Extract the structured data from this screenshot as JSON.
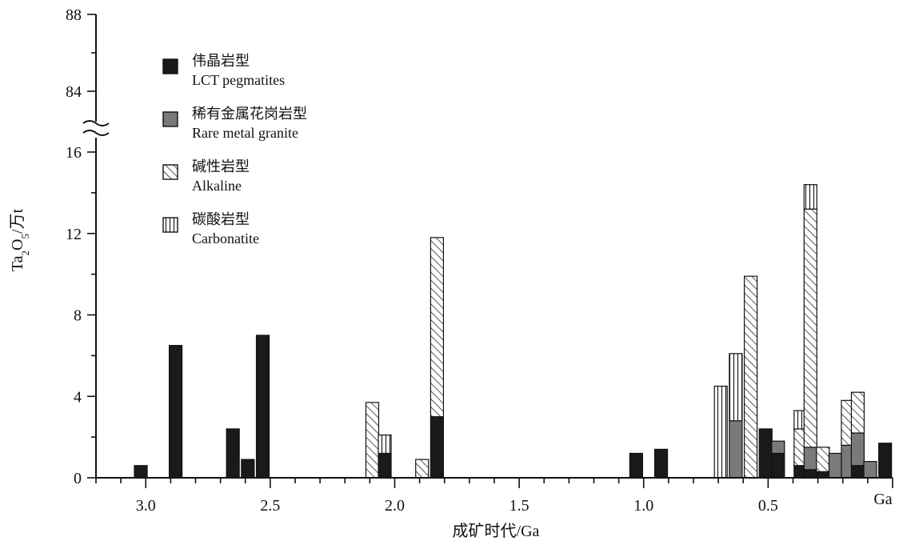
{
  "chart_data": {
    "type": "bar",
    "stacked": true,
    "xlabel": "成矿时代/Ga",
    "ylabel": "Ta2O5/万t",
    "x_unit_label": "Ga",
    "x_reversed": true,
    "xlim": [
      3.2,
      0
    ],
    "y_axis_break": {
      "lower_range": [
        0,
        17
      ],
      "upper_range": [
        83,
        88
      ]
    },
    "x_ticks": [
      "3.0",
      "2.5",
      "2.0",
      "1.5",
      "1.0",
      "0.5"
    ],
    "y_ticks_lower": [
      "0",
      "4",
      "8",
      "12",
      "16"
    ],
    "y_ticks_upper": [
      "84",
      "88"
    ],
    "legend": [
      {
        "key": "lct",
        "label_cn": "伟晶岩型",
        "label_en": "LCT pegmatites",
        "fill": "#1a1a1a"
      },
      {
        "key": "rmg",
        "label_cn": "稀有金属花岗岩型",
        "label_en": "Rare metal granite",
        "fill": "#7a7a7a"
      },
      {
        "key": "alk",
        "label_cn": "碱性岩型",
        "label_en": "Alkaline",
        "fill": "hatch-diagonal"
      },
      {
        "key": "carb",
        "label_cn": "碳酸岩型",
        "label_en": "Carbonatite",
        "fill": "hatch-vertical"
      }
    ],
    "legend_position": "top-left",
    "bars": [
      {
        "age": 3.02,
        "lct": 0.6,
        "rmg": 0,
        "alk": 0,
        "carb": 0
      },
      {
        "age": 2.88,
        "lct": 6.5,
        "rmg": 0,
        "alk": 0,
        "carb": 0
      },
      {
        "age": 2.65,
        "lct": 2.4,
        "rmg": 0,
        "alk": 0,
        "carb": 0
      },
      {
        "age": 2.59,
        "lct": 0.9,
        "rmg": 0,
        "alk": 0,
        "carb": 0
      },
      {
        "age": 2.53,
        "lct": 7.0,
        "rmg": 0,
        "alk": 0,
        "carb": 0
      },
      {
        "age": 2.09,
        "lct": 0,
        "rmg": 0,
        "alk": 3.7,
        "carb": 0
      },
      {
        "age": 2.04,
        "lct": 1.2,
        "rmg": 0,
        "alk": 0,
        "carb": 0.9
      },
      {
        "age": 1.89,
        "lct": 0,
        "rmg": 0,
        "alk": 0.9,
        "carb": 0
      },
      {
        "age": 1.83,
        "lct": 3.0,
        "rmg": 0,
        "alk": 8.8,
        "carb": 0
      },
      {
        "age": 1.03,
        "lct": 1.2,
        "rmg": 0,
        "alk": 0,
        "carb": 0
      },
      {
        "age": 0.93,
        "lct": 1.4,
        "rmg": 0,
        "alk": 0,
        "carb": 0
      },
      {
        "age": 0.69,
        "lct": 0,
        "rmg": 0,
        "alk": 0,
        "carb": 4.5
      },
      {
        "age": 0.63,
        "lct": 0,
        "rmg": 2.8,
        "alk": 0,
        "carb": 3.3
      },
      {
        "age": 0.57,
        "lct": 0,
        "rmg": 0,
        "alk": 9.9,
        "carb": 0
      },
      {
        "age": 0.51,
        "lct": 2.4,
        "rmg": 0,
        "alk": 0,
        "carb": 0
      },
      {
        "age": 0.46,
        "lct": 1.2,
        "rmg": 0.6,
        "alk": 0,
        "carb": 0
      },
      {
        "age": 0.37,
        "lct": 0.6,
        "rmg": 0,
        "alk": 1.8,
        "carb": 0.9
      },
      {
        "age": 0.33,
        "lct": 0.4,
        "rmg": 1.1,
        "alk": 11.7,
        "carb": 1.2
      },
      {
        "age": 0.28,
        "lct": 0.3,
        "rmg": 0,
        "alk": 1.2,
        "carb": 0
      },
      {
        "age": 0.23,
        "lct": 0,
        "rmg": 1.2,
        "alk": 0,
        "carb": 0
      },
      {
        "age": 0.18,
        "lct": 0,
        "rmg": 1.6,
        "alk": 2.2,
        "carb": 0
      },
      {
        "age": 0.14,
        "lct": 0.6,
        "rmg": 1.6,
        "alk": 2.0,
        "carb": 0
      },
      {
        "age": 0.09,
        "lct": 0,
        "rmg": 0.8,
        "alk": 0,
        "carb": 0
      },
      {
        "age": 0.03,
        "lct": 1.7,
        "rmg": 0,
        "alk": 0,
        "carb": 0
      }
    ]
  }
}
